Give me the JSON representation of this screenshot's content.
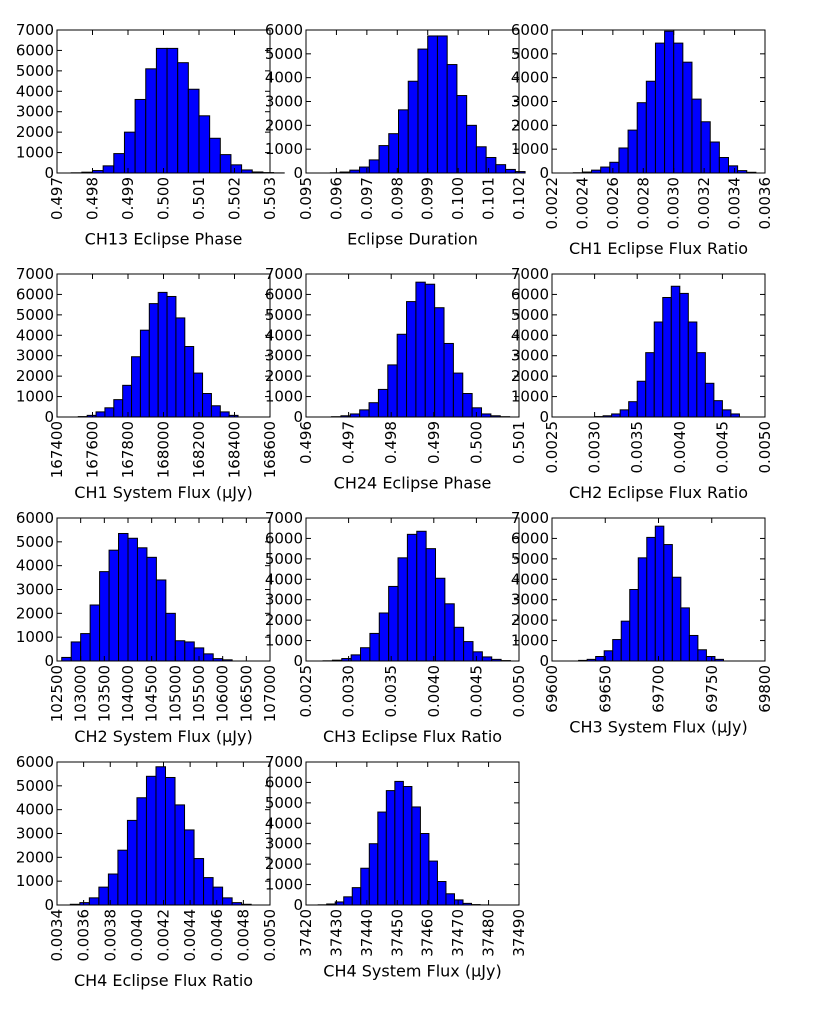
{
  "chart_data": [
    {
      "type": "bar",
      "xlabel": "CH13 Eclipse Phase",
      "xlim": [
        0.497,
        0.503
      ],
      "ylim": [
        0,
        7000
      ],
      "xticks": [
        "0.497",
        "0.498",
        "0.499",
        "0.500",
        "0.501",
        "0.502",
        "0.503"
      ],
      "yticks": [
        "0",
        "1000",
        "2000",
        "3000",
        "4000",
        "5000",
        "6000",
        "7000"
      ],
      "bin_start": 0.4974,
      "bin_width": 0.0003,
      "values": [
        10,
        40,
        120,
        350,
        950,
        2000,
        3600,
        5100,
        6100,
        6100,
        5400,
        4100,
        2800,
        1700,
        900,
        400,
        150,
        50,
        20,
        5
      ]
    },
    {
      "type": "bar",
      "xlabel": "Eclipse Duration",
      "xlim": [
        0.095,
        0.102
      ],
      "ylim": [
        0,
        6000
      ],
      "xticks": [
        "0.095",
        "0.096",
        "0.097",
        "0.098",
        "0.099",
        "0.100",
        "0.101",
        "0.102"
      ],
      "yticks": [
        "0",
        "1000",
        "2000",
        "3000",
        "4000",
        "5000",
        "6000"
      ],
      "bin_start": 0.0958,
      "bin_width": 0.00032,
      "values": [
        10,
        40,
        120,
        250,
        550,
        1150,
        1650,
        2650,
        3850,
        5200,
        5750,
        5750,
        4550,
        3250,
        2000,
        1100,
        650,
        350,
        150,
        60
      ]
    },
    {
      "type": "bar",
      "xlabel": "CH1 Eclipse Flux Ratio",
      "xlim": [
        0.0022,
        0.0036
      ],
      "ylim": [
        0,
        6000
      ],
      "xticks": [
        "0.0022",
        "0.0024",
        "0.0026",
        "0.0028",
        "0.0030",
        "0.0032",
        "0.0034",
        "0.0036"
      ],
      "yticks": [
        "0",
        "1000",
        "2000",
        "3000",
        "4000",
        "5000",
        "6000"
      ],
      "bin_start": 0.00234,
      "bin_width": 6e-05,
      "values": [
        10,
        40,
        120,
        250,
        450,
        1050,
        1800,
        2950,
        3850,
        5450,
        5950,
        5450,
        4650,
        3100,
        2150,
        1300,
        650,
        300,
        100,
        30
      ]
    },
    {
      "type": "bar",
      "xlabel": "CH1 System Flux (μJy)",
      "xlim": [
        167400,
        168600
      ],
      "ylim": [
        0,
        7000
      ],
      "xticks": [
        "167400",
        "167600",
        "167800",
        "168000",
        "168200",
        "168400",
        "168600"
      ],
      "yticks": [
        "0",
        "1000",
        "2000",
        "3000",
        "4000",
        "5000",
        "6000",
        "7000"
      ],
      "bin_start": 167520,
      "bin_width": 50,
      "values": [
        20,
        80,
        250,
        450,
        850,
        1550,
        2950,
        4250,
        5550,
        6100,
        5900,
        4850,
        3450,
        2150,
        1150,
        550,
        250,
        80
      ]
    },
    {
      "type": "bar",
      "xlabel": "CH24 Eclipse Phase",
      "xlim": [
        0.496,
        0.501
      ],
      "ylim": [
        0,
        7000
      ],
      "xticks": [
        "0.496",
        "0.497",
        "0.498",
        "0.499",
        "0.500",
        "0.501"
      ],
      "yticks": [
        "0",
        "1000",
        "2000",
        "3000",
        "4000",
        "5000",
        "6000",
        "7000"
      ],
      "bin_start": 0.4966,
      "bin_width": 0.00022,
      "values": [
        15,
        60,
        150,
        350,
        700,
        1350,
        2550,
        4050,
        5650,
        6600,
        6500,
        5350,
        3600,
        2150,
        1150,
        450,
        150,
        60,
        15
      ]
    },
    {
      "type": "bar",
      "xlabel": "CH2 Eclipse Flux Ratio",
      "xlim": [
        0.0025,
        0.005
      ],
      "ylim": [
        0,
        7000
      ],
      "xticks": [
        "0.0025",
        "0.0030",
        "0.0035",
        "0.0040",
        "0.0045",
        "0.0050"
      ],
      "yticks": [
        "0",
        "1000",
        "2000",
        "3000",
        "4000",
        "5000",
        "6000",
        "7000"
      ],
      "bin_start": 0.003,
      "bin_width": 0.0001,
      "values": [
        20,
        60,
        150,
        350,
        750,
        1750,
        3150,
        4650,
        5850,
        6400,
        6050,
        4650,
        3150,
        1650,
        800,
        350,
        150
      ]
    },
    {
      "type": "bar",
      "xlabel": "CH2 System Flux (μJy)",
      "xlim": [
        102500,
        107000
      ],
      "ylim": [
        0,
        6000
      ],
      "xticks": [
        "102500",
        "103000",
        "103500",
        "104000",
        "104500",
        "105000",
        "105500",
        "106000",
        "106500",
        "107000"
      ],
      "yticks": [
        "0",
        "1000",
        "2000",
        "3000",
        "4000",
        "5000",
        "6000"
      ],
      "bin_start": 102600,
      "bin_width": 200,
      "values": [
        150,
        800,
        1150,
        2350,
        3750,
        4650,
        5350,
        5150,
        4750,
        4350,
        3400,
        2000,
        850,
        800,
        550,
        300,
        100,
        50
      ]
    },
    {
      "type": "bar",
      "xlabel": "CH3 Eclipse Flux Ratio",
      "xlim": [
        0.0025,
        0.005
      ],
      "ylim": [
        0,
        7000
      ],
      "xticks": [
        "0.0025",
        "0.0030",
        "0.0035",
        "0.0040",
        "0.0045",
        "0.0050"
      ],
      "yticks": [
        "0",
        "1000",
        "2000",
        "3000",
        "4000",
        "5000",
        "6000",
        "7000"
      ],
      "bin_start": 0.0027,
      "bin_width": 0.00011,
      "values": [
        10,
        40,
        120,
        300,
        650,
        1350,
        2350,
        3650,
        5050,
        6200,
        6350,
        5500,
        4050,
        2800,
        1650,
        950,
        450,
        200,
        80,
        20
      ]
    },
    {
      "type": "bar",
      "xlabel": "CH3 System Flux (μJy)",
      "xlim": [
        69600,
        69800
      ],
      "ylim": [
        0,
        7000
      ],
      "xticks": [
        "69600",
        "69650",
        "69700",
        "69750",
        "69800"
      ],
      "yticks": [
        "0",
        "1000",
        "2000",
        "3000",
        "4000",
        "5000",
        "6000",
        "7000"
      ],
      "bin_start": 69625,
      "bin_width": 8,
      "values": [
        30,
        80,
        220,
        500,
        1050,
        1950,
        3500,
        5050,
        6050,
        6600,
        5700,
        4100,
        2600,
        1250,
        550,
        220,
        80
      ]
    },
    {
      "type": "bar",
      "xlabel": "CH4 Eclipse Flux Ratio",
      "xlim": [
        0.0034,
        0.005
      ],
      "ylim": [
        0,
        6000
      ],
      "xticks": [
        "0.0034",
        "0.0036",
        "0.0038",
        "0.0040",
        "0.0042",
        "0.0044",
        "0.0046",
        "0.0048",
        "0.0050"
      ],
      "yticks": [
        "0",
        "1000",
        "2000",
        "3000",
        "4000",
        "5000",
        "6000"
      ],
      "bin_start": 0.0035,
      "bin_width": 7.15e-05,
      "values": [
        30,
        100,
        300,
        750,
        1300,
        2300,
        3550,
        4500,
        5400,
        5800,
        5350,
        4200,
        3150,
        1950,
        1150,
        750,
        300,
        100,
        30
      ]
    },
    {
      "type": "bar",
      "xlabel": "CH4 System Flux (μJy)",
      "xlim": [
        37420,
        37490
      ],
      "ylim": [
        0,
        7000
      ],
      "xticks": [
        "37420",
        "37430",
        "37440",
        "37450",
        "37460",
        "37470",
        "37480",
        "37490"
      ],
      "yticks": [
        "0",
        "1000",
        "2000",
        "3000",
        "4000",
        "5000",
        "6000",
        "7000"
      ],
      "bin_start": 37424,
      "bin_width": 2.8,
      "values": [
        10,
        50,
        150,
        400,
        850,
        1800,
        3000,
        4550,
        5600,
        6050,
        5800,
        4800,
        3500,
        2150,
        1150,
        550,
        250,
        80,
        20,
        5
      ]
    }
  ]
}
